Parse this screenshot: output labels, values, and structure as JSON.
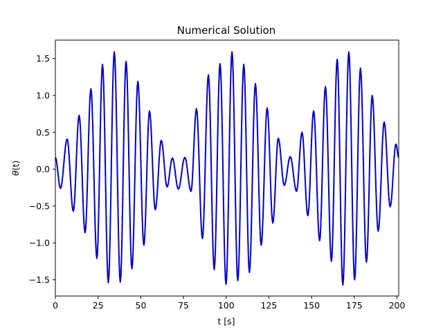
{
  "chart_data": {
    "type": "line",
    "title": "Numerical Solution",
    "xlabel": "t [s]",
    "ylabel_symbol": "θ",
    "ylabel_arg": "(t)",
    "xlim": [
      0,
      201
    ],
    "ylim": [
      -1.72,
      1.75
    ],
    "xticks": [
      0,
      25,
      50,
      75,
      100,
      125,
      150,
      175,
      200
    ],
    "yticks": [
      -1.5,
      -1.0,
      -0.5,
      0.0,
      0.5,
      1.0,
      1.5
    ],
    "xtick_labels": [
      "0",
      "25",
      "50",
      "75",
      "100",
      "125",
      "150",
      "175",
      "200"
    ],
    "ytick_labels": [
      "−1.5",
      "−1.0",
      "−0.5",
      "0.0",
      "0.5",
      "1.0",
      "1.5"
    ],
    "grid": false,
    "series": [
      {
        "color": "#0000cc",
        "x": [
          0,
          3.0,
          6.9,
          10.5,
          13.9,
          17.4,
          20.8,
          24.3,
          27.6,
          31.0,
          34.5,
          38.0,
          41.4,
          44.8,
          48.3,
          51.8,
          55.1,
          58.5,
          62.0,
          65.4,
          68.5,
          72.0,
          75.8,
          79.4,
          82.6,
          86.1,
          89.6,
          93.0,
          96.4,
          99.9,
          103.4,
          106.8,
          110.3,
          113.6,
          117.1,
          120.5,
          124.0,
          127.3,
          130.5,
          134.0,
          137.5,
          141.2,
          144.4,
          147.8,
          151.2,
          154.7,
          158.1,
          161.6,
          165.0,
          168.3,
          171.8,
          175.2,
          178.6,
          182.1,
          185.5,
          189.0,
          192.5,
          196.0,
          199.4,
          201
        ],
        "y": [
          0.16,
          -0.26,
          0.41,
          -0.57,
          0.73,
          -0.86,
          1.09,
          -1.21,
          1.42,
          -1.54,
          1.59,
          -1.53,
          1.46,
          -1.35,
          1.19,
          -1.03,
          0.79,
          -0.55,
          0.39,
          -0.24,
          0.15,
          -0.27,
          0.16,
          -0.3,
          0.82,
          -0.94,
          1.28,
          -1.36,
          1.43,
          -1.56,
          1.59,
          -1.51,
          1.42,
          -1.4,
          1.16,
          -1.03,
          0.83,
          -0.73,
          0.42,
          -0.22,
          0.17,
          -0.3,
          0.5,
          -0.63,
          0.79,
          -0.97,
          1.12,
          -1.25,
          1.49,
          -1.57,
          1.59,
          -1.5,
          1.37,
          -1.26,
          1.0,
          -0.84,
          0.64,
          -0.51,
          0.34,
          0.16
        ]
      }
    ]
  }
}
